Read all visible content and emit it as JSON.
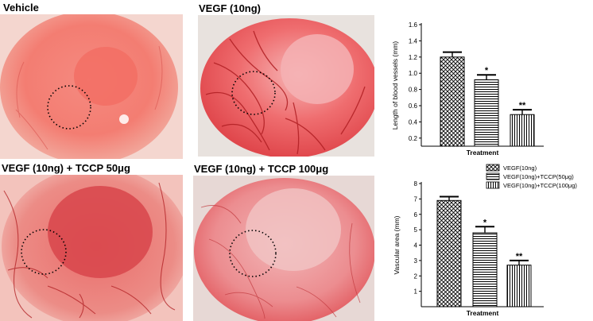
{
  "panels": [
    {
      "label": "Vehicle"
    },
    {
      "label": "VEGF (10ng)"
    },
    {
      "label": "VEGF (10ng) + TCCP 50μg"
    },
    {
      "label": "VEGF (10ng) + TCCP 100μg"
    }
  ],
  "colors": {
    "cornea_red": "#e9514f",
    "vessel": "#b01e22",
    "background_pink": "#f3c3bc"
  },
  "chart_data": [
    {
      "type": "bar",
      "categories": [
        "VEGF(10ng)",
        "VEGF(10ng)+TCCP(50μg)",
        "VEGF(10ng)+TCCP(100μg)"
      ],
      "values": [
        1.2,
        0.92,
        0.49
      ],
      "errors": [
        0.06,
        0.06,
        0.06
      ],
      "significance": [
        "",
        "*",
        "**"
      ],
      "xlabel": "Treatment",
      "ylabel": "Length of blood vessels (mm)",
      "ylim": [
        0.1,
        1.6
      ],
      "yticks": [
        "0.2",
        "0.4",
        "0.6",
        "0.8",
        "1.0",
        "1.2",
        "1.4",
        "1.6"
      ],
      "patterns": [
        "crosshatch",
        "horizontal",
        "vertical"
      ]
    },
    {
      "type": "bar",
      "categories": [
        "VEGF(10ng)",
        "VEGF(10ng)+TCCP(50μg)",
        "VEGF(10ng)+TCCP(100μg)"
      ],
      "values": [
        6.9,
        4.8,
        2.7
      ],
      "errors": [
        0.25,
        0.4,
        0.3
      ],
      "significance": [
        "",
        "*",
        "**"
      ],
      "xlabel": "Treatment",
      "ylabel": "Vascular area (mm)",
      "ylim": [
        0,
        8
      ],
      "yticks": [
        "1",
        "2",
        "3",
        "4",
        "5",
        "6",
        "7",
        "8"
      ],
      "legend": [
        "VEGF(10ng)",
        "VEGF(10ng)+TCCP(50μg)",
        "VEGF(10ng)+TCCP(100μg)"
      ],
      "legend_position": "top-right",
      "patterns": [
        "crosshatch",
        "horizontal",
        "vertical"
      ]
    }
  ]
}
